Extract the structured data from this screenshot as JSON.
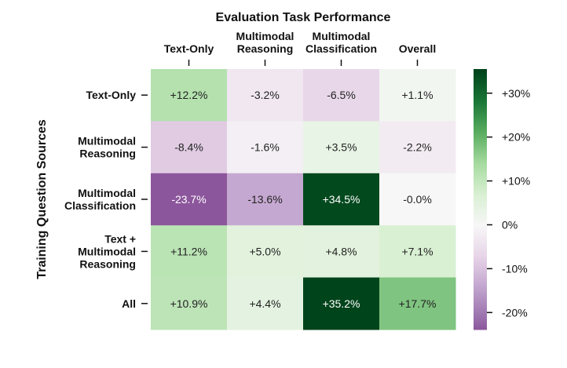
{
  "chart_data": {
    "type": "heatmap",
    "title": "Evaluation Task Performance",
    "xlabel": "",
    "ylabel": "Training Question Sources",
    "columns": [
      "Text-Only",
      "Multimodal Reasoning",
      "Multimodal Classification",
      "Overall"
    ],
    "rows": [
      "Text-Only",
      "Multimodal Reasoning",
      "Multimodal Classification",
      "Text + Multimodal Reasoning",
      "All"
    ],
    "values": [
      [
        12.2,
        -3.2,
        -6.5,
        1.1
      ],
      [
        -8.4,
        -1.6,
        3.5,
        -2.2
      ],
      [
        -23.7,
        -13.6,
        34.5,
        -0.0
      ],
      [
        11.2,
        5.0,
        4.8,
        7.1
      ],
      [
        10.9,
        4.4,
        35.2,
        17.7
      ]
    ],
    "labels": [
      [
        "+12.2%",
        "-3.2%",
        "-6.5%",
        "+1.1%"
      ],
      [
        "-8.4%",
        "-1.6%",
        "+3.5%",
        "-2.2%"
      ],
      [
        "-23.7%",
        "-13.6%",
        "+34.5%",
        "-0.0%"
      ],
      [
        "+11.2%",
        "+5.0%",
        "+4.8%",
        "+7.1%"
      ],
      [
        "+10.9%",
        "+4.4%",
        "+35.2%",
        "+17.7%"
      ]
    ],
    "colormap": "PRGn",
    "center": 0,
    "vrange": [
      -23.7,
      35.2
    ],
    "colorbar": {
      "ticks": [
        30,
        20,
        10,
        0,
        -10,
        -20
      ],
      "tick_labels": [
        "+30%",
        "+20%",
        "+10%",
        "0%",
        "-10%",
        "-20%"
      ]
    },
    "colors": [
      "#40004b",
      "#762a83",
      "#9970ab",
      "#c2a5cf",
      "#e7d4e8",
      "#f7f7f7",
      "#d9f0d3",
      "#a6dba0",
      "#5aae61",
      "#1b7837",
      "#00441b"
    ]
  }
}
